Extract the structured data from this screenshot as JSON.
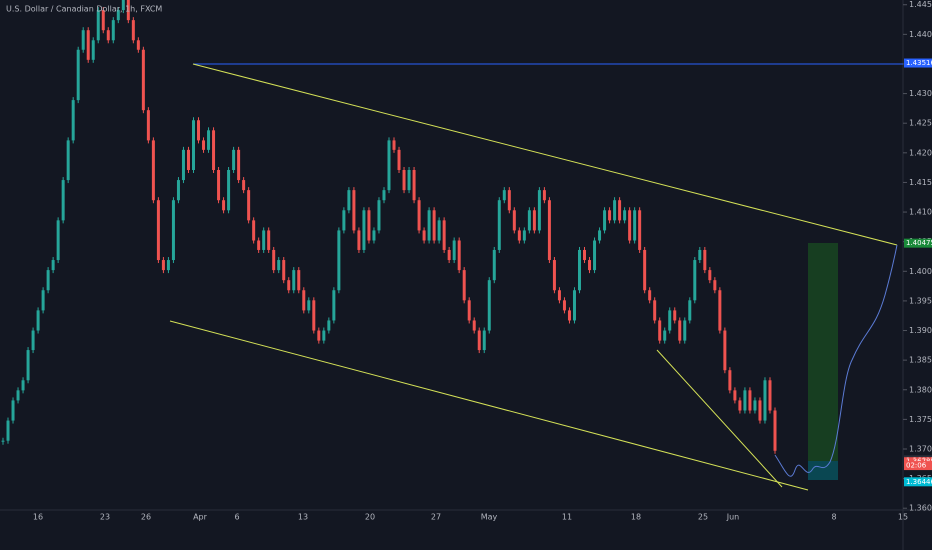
{
  "chart_data": {
    "type": "candlestick",
    "title": "U.S. Dollar / Canadian Dollar, 1h, FXCM",
    "series": [
      {
        "up_color": "#26a69a",
        "down_color": "#ef5350",
        "values": [
          1.3714,
          1.3748,
          1.3782,
          1.3799,
          1.3816,
          1.3867,
          1.39,
          1.3934,
          1.3968,
          1.4002,
          1.4019,
          1.4086,
          1.4154,
          1.4221,
          1.4289,
          1.4374,
          1.4407,
          1.4357,
          1.439,
          1.4441,
          1.4407,
          1.439,
          1.4424,
          1.4441,
          1.4458,
          1.4424,
          1.439,
          1.4374,
          1.4272,
          1.4221,
          1.412,
          1.4019,
          1.4002,
          1.4019,
          1.412,
          1.4154,
          1.4205,
          1.4171,
          1.4255,
          1.4221,
          1.4205,
          1.4238,
          1.4171,
          1.412,
          1.4103,
          1.4171,
          1.4205,
          1.4154,
          1.4137,
          1.4086,
          1.4052,
          1.4036,
          1.4069,
          1.4036,
          1.4002,
          1.4019,
          1.3985,
          1.3968,
          1.4002,
          1.3968,
          1.3934,
          1.3951,
          1.39,
          1.3883,
          1.39,
          1.3917,
          1.3968,
          1.4069,
          1.4103,
          1.4137,
          1.4069,
          1.4036,
          1.4103,
          1.4052,
          1.4069,
          1.412,
          1.4137,
          1.4221,
          1.4205,
          1.4171,
          1.4137,
          1.4171,
          1.412,
          1.4069,
          1.4052,
          1.4103,
          1.4052,
          1.4086,
          1.4036,
          1.4019,
          1.4052,
          1.4002,
          1.3951,
          1.3917,
          1.39,
          1.3867,
          1.39,
          1.3985,
          1.4036,
          1.412,
          1.4137,
          1.4103,
          1.4069,
          1.4052,
          1.4069,
          1.4103,
          1.4069,
          1.4137,
          1.412,
          1.4019,
          1.3968,
          1.3951,
          1.3934,
          1.3917,
          1.3968,
          1.4036,
          1.4019,
          1.4002,
          1.4052,
          1.4069,
          1.4103,
          1.4086,
          1.412,
          1.4086,
          1.4103,
          1.4052,
          1.4103,
          1.4036,
          1.3968,
          1.3951,
          1.3917,
          1.3883,
          1.39,
          1.3934,
          1.3917,
          1.3883,
          1.3917,
          1.3951,
          1.4019,
          1.4036,
          1.4002,
          1.3985,
          1.3968,
          1.39,
          1.3833,
          1.3799,
          1.3782,
          1.3765,
          1.3799,
          1.3765,
          1.3782,
          1.3748,
          1.3816,
          1.3765,
          1.3697
        ]
      }
    ],
    "ylim": [
      1.3597,
      1.4458
    ],
    "yticks": [
      {
        "value": 1.445,
        "label": "1.44500"
      },
      {
        "value": 1.44,
        "label": "1.44000"
      },
      {
        "value": 1.435,
        "label": "1.43500"
      },
      {
        "value": 1.43,
        "label": "1.43000"
      },
      {
        "value": 1.425,
        "label": "1.42500"
      },
      {
        "value": 1.42,
        "label": "1.42000"
      },
      {
        "value": 1.415,
        "label": "1.41500"
      },
      {
        "value": 1.41,
        "label": "1.41000"
      },
      {
        "value": 1.405,
        "label": "1.40500"
      },
      {
        "value": 1.4,
        "label": "1.40000"
      },
      {
        "value": 1.395,
        "label": "1.39500"
      },
      {
        "value": 1.39,
        "label": "1.39000"
      },
      {
        "value": 1.385,
        "label": "1.38500"
      },
      {
        "value": 1.38,
        "label": "1.38000"
      },
      {
        "value": 1.375,
        "label": "1.37500"
      },
      {
        "value": 1.37,
        "label": "1.37000"
      },
      {
        "value": 1.365,
        "label": "1.36500"
      },
      {
        "value": 1.36,
        "label": "1.36000"
      }
    ],
    "x_labels": [
      "16",
      "23",
      "26",
      "Apr",
      "6",
      "13",
      "20",
      "27",
      "May",
      "11",
      "18",
      "25",
      "Jun",
      "8",
      "15"
    ],
    "price_labels": [
      {
        "value": 1.43516,
        "label": "1.43516",
        "color": "#2962ff"
      },
      {
        "value": 1.40475,
        "label": "1.40475",
        "color": "#1b8a3a"
      },
      {
        "value": 1.36817,
        "label": "1.36817",
        "color": "#2a2e39"
      },
      {
        "value": 1.36785,
        "label": "1.36785",
        "color": "#ef5350"
      },
      {
        "value": 1.3672,
        "label": "02:06",
        "color": "#ef5350"
      },
      {
        "value": 1.36446,
        "label": "1.36446",
        "color": "#00bcd4"
      }
    ]
  }
}
